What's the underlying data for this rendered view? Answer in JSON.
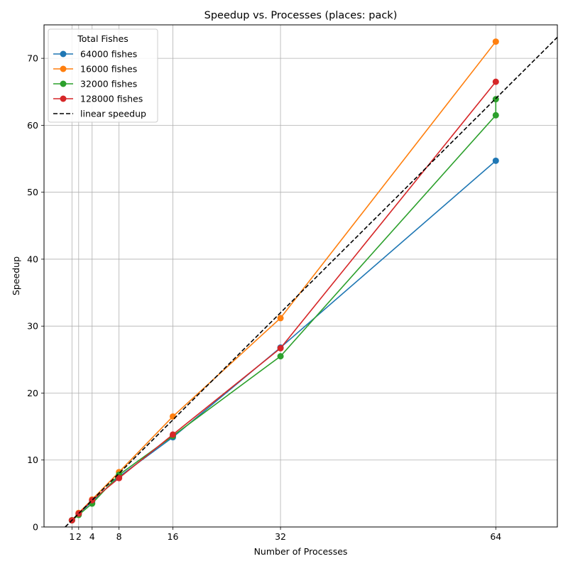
{
  "chart_data": {
    "type": "line",
    "title": "Speedup vs. Processes (places: pack)",
    "xlabel": "Number of Processes",
    "ylabel": "Speedup",
    "xlim": [
      -3.15,
      73.15
    ],
    "ylim": [
      0,
      75
    ],
    "x_ticks": [
      1,
      2,
      4,
      8,
      16,
      32,
      64
    ],
    "x_tick_labels": [
      "1",
      "2",
      "4",
      "8",
      "16",
      "32",
      "64"
    ],
    "y_ticks": [
      0,
      10,
      20,
      30,
      40,
      50,
      60,
      70
    ],
    "y_tick_labels": [
      "0",
      "10",
      "20",
      "30",
      "40",
      "50",
      "60",
      "70"
    ],
    "grid": true,
    "legend": {
      "title": "Total Fishes",
      "placement": "upper-left"
    },
    "series": [
      {
        "name": "64000 fishes",
        "color": "#1f77b4",
        "style": "solid-marker",
        "x": [
          1,
          2,
          4,
          8,
          16,
          32,
          64
        ],
        "values": [
          1.0,
          2.0,
          3.8,
          7.5,
          13.4,
          26.8,
          54.7
        ]
      },
      {
        "name": "16000 fishes",
        "color": "#ff7f0e",
        "style": "solid-marker",
        "x": [
          1,
          2,
          4,
          8,
          16,
          32,
          64
        ],
        "values": [
          1.0,
          2.1,
          4.1,
          8.2,
          16.5,
          31.2,
          72.5
        ]
      },
      {
        "name": "32000 fishes",
        "color": "#2ca02c",
        "style": "solid-marker",
        "x": [
          1,
          2,
          4,
          8,
          16,
          32,
          64,
          64
        ],
        "values": [
          1.0,
          1.8,
          3.5,
          7.8,
          13.6,
          25.5,
          61.5,
          63.9
        ]
      },
      {
        "name": "128000 fishes",
        "color": "#d62728",
        "style": "solid-marker",
        "x": [
          1,
          2,
          4,
          8,
          16,
          32,
          64
        ],
        "values": [
          1.0,
          2.0,
          4.0,
          7.3,
          13.8,
          26.7,
          66.5
        ]
      },
      {
        "name": "linear speedup",
        "color": "#000000",
        "style": "dashed",
        "x": [
          0,
          80
        ],
        "values": [
          0,
          80
        ]
      }
    ]
  }
}
